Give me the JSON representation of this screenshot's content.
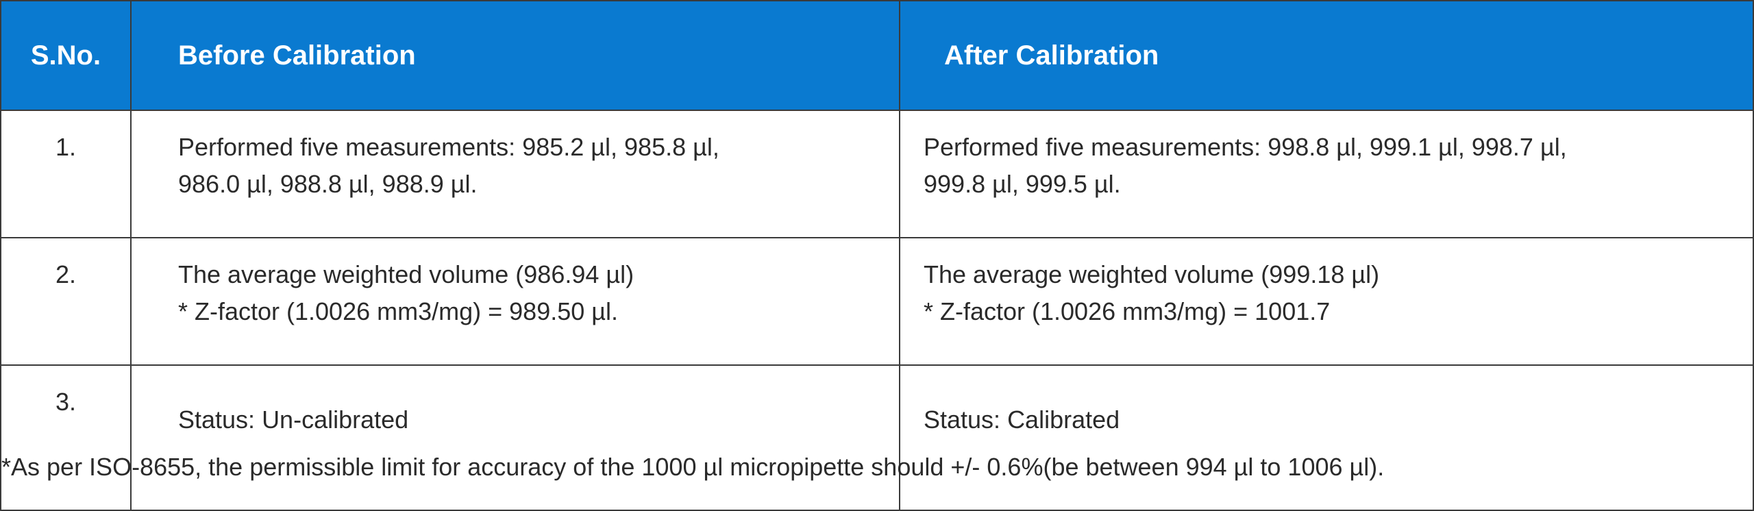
{
  "table": {
    "headers": {
      "sno": "S.No.",
      "before": "Before Calibration",
      "after": "After Calibration"
    },
    "rows": [
      {
        "sno": "1.",
        "before": [
          "Performed five measurements: 985.2 µl, 985.8 µl,",
          "986.0 µl, 988.8 µl, 988.9 µl."
        ],
        "after": [
          "Performed five measurements: 998.8 µl, 999.1 µl, 998.7 µl,",
          "999.8 µl, 999.5 µl."
        ]
      },
      {
        "sno": "2.",
        "before": [
          "The average weighted volume (986.94 µl)",
          "* Z-factor (1.0026 mm3/mg) = 989.50 µl."
        ],
        "after": [
          "The average weighted volume (999.18 µl)",
          "* Z-factor (1.0026 mm3/mg) = 1001.7"
        ]
      },
      {
        "sno": "3.",
        "before": [
          "Status: Un-calibrated"
        ],
        "after": [
          "Status: Calibrated"
        ]
      }
    ]
  },
  "footnote": "*As per ISO-8655, the permissible limit for accuracy of the 1000 µl micropipette should +/- 0.6%(be between 994 µl to 1006 µl).",
  "colors": {
    "header_background": "#0a7ad0",
    "header_text": "#ffffff",
    "body_text": "#2a2a2a",
    "border": "#3a3a3a"
  }
}
